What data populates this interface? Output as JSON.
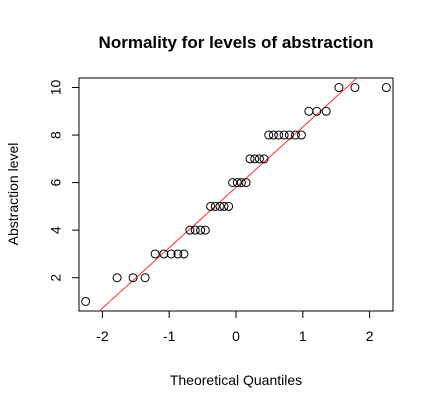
{
  "chart_data": {
    "type": "scatter",
    "title": "Normality for levels of abstraction",
    "xlabel": "Theoretical Quantiles",
    "ylabel": "Abstraction level",
    "xlim": [
      -2.35,
      2.35
    ],
    "ylim": [
      0.6,
      10.4
    ],
    "xticks": [
      -2,
      -1,
      0,
      1,
      2
    ],
    "yticks": [
      2,
      4,
      6,
      8,
      10
    ],
    "grid": false,
    "legend": "none",
    "point_color": "#000000",
    "line_color": "#ff3030",
    "reference_line": {
      "intercept": 5.8,
      "slope": 2.54
    },
    "points": [
      {
        "x": -2.25,
        "y": 1
      },
      {
        "x": -1.78,
        "y": 2
      },
      {
        "x": -1.54,
        "y": 2
      },
      {
        "x": -1.36,
        "y": 2
      },
      {
        "x": -1.21,
        "y": 3
      },
      {
        "x": -1.08,
        "y": 3
      },
      {
        "x": -0.97,
        "y": 3
      },
      {
        "x": -0.87,
        "y": 3
      },
      {
        "x": -0.78,
        "y": 3
      },
      {
        "x": -0.69,
        "y": 4
      },
      {
        "x": -0.61,
        "y": 4
      },
      {
        "x": -0.53,
        "y": 4
      },
      {
        "x": -0.46,
        "y": 4
      },
      {
        "x": -0.38,
        "y": 5
      },
      {
        "x": -0.31,
        "y": 5
      },
      {
        "x": -0.24,
        "y": 5
      },
      {
        "x": -0.18,
        "y": 5
      },
      {
        "x": -0.11,
        "y": 5
      },
      {
        "x": -0.05,
        "y": 6
      },
      {
        "x": 0.02,
        "y": 6
      },
      {
        "x": 0.08,
        "y": 6
      },
      {
        "x": 0.15,
        "y": 6
      },
      {
        "x": 0.21,
        "y": 7
      },
      {
        "x": 0.28,
        "y": 7
      },
      {
        "x": 0.35,
        "y": 7
      },
      {
        "x": 0.42,
        "y": 7
      },
      {
        "x": 0.49,
        "y": 8
      },
      {
        "x": 0.56,
        "y": 8
      },
      {
        "x": 0.64,
        "y": 8
      },
      {
        "x": 0.72,
        "y": 8
      },
      {
        "x": 0.8,
        "y": 8
      },
      {
        "x": 0.89,
        "y": 8
      },
      {
        "x": 0.98,
        "y": 8
      },
      {
        "x": 1.09,
        "y": 9
      },
      {
        "x": 1.21,
        "y": 9
      },
      {
        "x": 1.35,
        "y": 9
      },
      {
        "x": 1.54,
        "y": 10
      },
      {
        "x": 1.78,
        "y": 10
      },
      {
        "x": 2.25,
        "y": 10
      }
    ]
  }
}
